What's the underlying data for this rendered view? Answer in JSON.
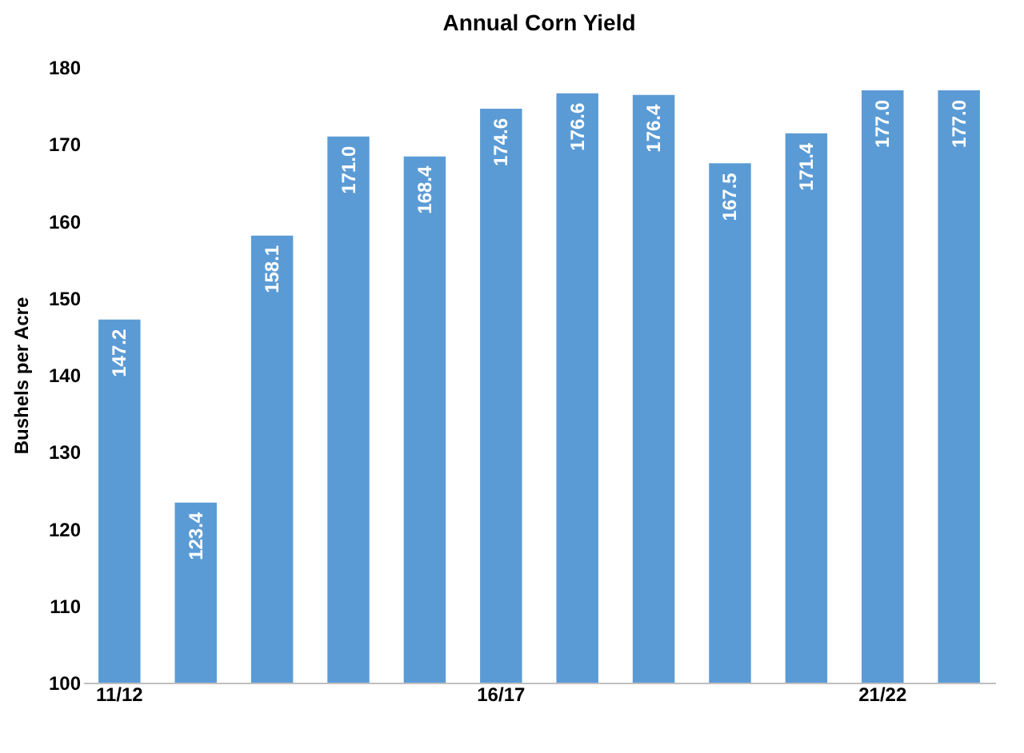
{
  "chart_data": {
    "type": "bar",
    "title": "Annual Corn Yield",
    "ylabel": "Bushels per Acre",
    "categories": [
      "11/12",
      null,
      null,
      null,
      null,
      "16/17",
      null,
      null,
      null,
      null,
      "21/22",
      null
    ],
    "values": [
      147.2,
      123.4,
      158.1,
      171.0,
      168.4,
      174.6,
      176.6,
      176.4,
      167.5,
      171.4,
      177.0,
      177.0
    ],
    "value_labels": [
      "147.2",
      "123.4",
      "158.1",
      "171.0",
      "168.4",
      "174.6",
      "176.6",
      "176.4",
      "167.5",
      "171.4",
      "177.0",
      "177.0"
    ],
    "color": "#5b9bd5",
    "ylim": [
      100,
      180
    ],
    "yticks": [
      100,
      110,
      120,
      130,
      140,
      150,
      160,
      170,
      180
    ]
  }
}
